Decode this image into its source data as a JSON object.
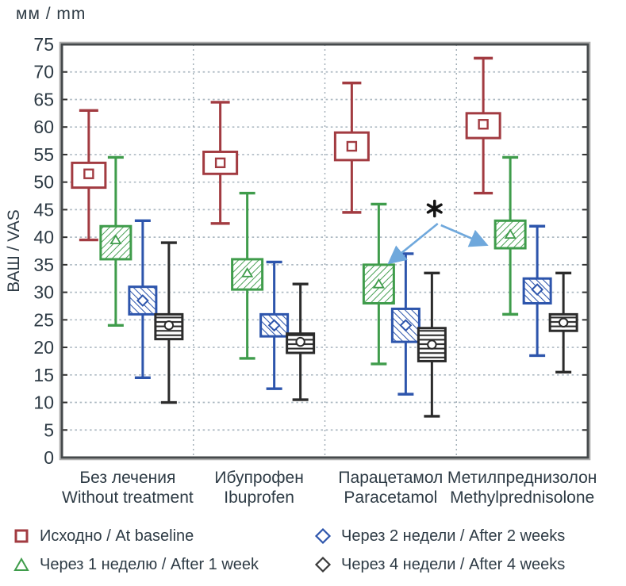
{
  "chart_data": {
    "type": "box",
    "unit_label": "мм / mm",
    "ylabel": "ВАШ / VAS",
    "ylim": [
      0,
      75
    ],
    "ytick_step": 5,
    "grid": "dotted horizontal lines every 5; dashed vertical separators between groups",
    "legend_position": "bottom, two columns",
    "box_value_format": [
      "whisker_low",
      "q1",
      "median",
      "q3",
      "whisker_high"
    ],
    "categories": [
      {
        "ru": "Без лечения",
        "en": "Without treatment"
      },
      {
        "ru": "Ибупрофен",
        "en": "Ibuprofen"
      },
      {
        "ru": "Парацетамол",
        "en": "Paracetamol"
      },
      {
        "ru": "Метилпреднизолон",
        "en": "Methylprednisolone"
      }
    ],
    "series": [
      {
        "key": "baseline",
        "label": "Исходно / At baseline",
        "color": "#A23B41",
        "marker": "square",
        "pattern": "none"
      },
      {
        "key": "week1",
        "label": "Через 1 неделю / After 1 week",
        "color": "#3F9C4B",
        "marker": "triangle",
        "pattern": "diagonal-up"
      },
      {
        "key": "week2",
        "label": "Через 2 недели / After 2 weeks",
        "color": "#2D55AC",
        "marker": "diamond",
        "pattern": "diagonal-down"
      },
      {
        "key": "week4",
        "label": "Через 4 недели / After 4 weeks",
        "color": "#2B2B2B",
        "marker": "circle",
        "pattern": "horizontal"
      }
    ],
    "boxes": [
      [
        [
          39.5,
          49,
          51.5,
          53.5,
          63
        ],
        [
          24,
          36,
          39.5,
          42,
          54.5
        ],
        [
          14.5,
          26,
          28.5,
          31,
          43
        ],
        [
          10,
          21.5,
          24,
          26,
          39
        ]
      ],
      [
        [
          42.5,
          51.5,
          53.5,
          55.5,
          64.5
        ],
        [
          18,
          30.5,
          33.5,
          36,
          48
        ],
        [
          12.5,
          22,
          24,
          26,
          35.5
        ],
        [
          10.5,
          19,
          21,
          22.5,
          31.5
        ]
      ],
      [
        [
          44.5,
          54,
          56.5,
          59,
          68
        ],
        [
          17,
          28,
          31.5,
          35,
          46
        ],
        [
          11.5,
          21,
          24,
          27,
          37
        ],
        [
          7.5,
          17.5,
          20.5,
          23.5,
          33.5
        ]
      ],
      [
        [
          48,
          58,
          60.5,
          62.5,
          72.5
        ],
        [
          26,
          38,
          40.5,
          43,
          54.5
        ],
        [
          18.5,
          28,
          30.5,
          32.5,
          42
        ],
        [
          15.5,
          23,
          24.5,
          26,
          33.5
        ]
      ]
    ],
    "annotation": {
      "symbol": "*",
      "arrow_color": "#6FA8DC",
      "targets": [
        {
          "category": 2,
          "series": 1
        },
        {
          "category": 3,
          "series": 1
        }
      ]
    },
    "style_colors": {
      "text": "#2E3B45",
      "grid_dotted": "#AEBAC3",
      "separator_dashed": "#9FACB5",
      "frame": "#45494B",
      "frame_outer": "#ADADAD",
      "asterisk": "#141414"
    }
  }
}
